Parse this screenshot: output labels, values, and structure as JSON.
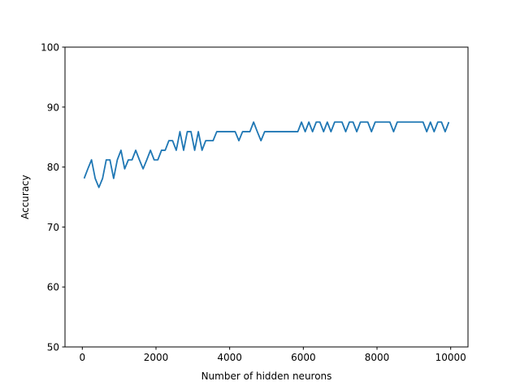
{
  "chart_data": {
    "type": "line",
    "title": "",
    "xlabel": "Number of hidden neurons",
    "ylabel": "Accuracy",
    "xlim": [
      -470,
      10470
    ],
    "ylim": [
      50,
      100
    ],
    "xticks": [
      0,
      2000,
      4000,
      6000,
      8000,
      10000
    ],
    "yticks": [
      50,
      60,
      70,
      80,
      90,
      100
    ],
    "xtick_labels": [
      "0",
      "2000",
      "4000",
      "6000",
      "8000",
      "10000"
    ],
    "ytick_labels": [
      "50",
      "60",
      "70",
      "80",
      "90",
      "100"
    ],
    "grid": false,
    "legend": "none",
    "series": [
      {
        "color": "#1f77b4",
        "x": [
          50,
          150,
          250,
          350,
          450,
          550,
          650,
          750,
          850,
          950,
          1050,
          1150,
          1250,
          1350,
          1450,
          1550,
          1650,
          1750,
          1850,
          1950,
          2050,
          2150,
          2250,
          2350,
          2450,
          2550,
          2650,
          2750,
          2850,
          2950,
          3050,
          3150,
          3250,
          3350,
          3450,
          3550,
          3650,
          3750,
          3850,
          3950,
          4050,
          4150,
          4250,
          4350,
          4450,
          4550,
          4650,
          4750,
          4850,
          4950,
          5050,
          5150,
          5250,
          5350,
          5450,
          5550,
          5650,
          5750,
          5850,
          5950,
          6050,
          6150,
          6250,
          6350,
          6450,
          6550,
          6650,
          6750,
          6850,
          6950,
          7050,
          7150,
          7250,
          7350,
          7450,
          7550,
          7650,
          7750,
          7850,
          7950,
          8050,
          8150,
          8250,
          8350,
          8450,
          8550,
          8650,
          8750,
          8850,
          8950,
          9050,
          9150,
          9250,
          9350,
          9450,
          9550,
          9650,
          9750,
          9850,
          9950
        ],
        "y": [
          78.1,
          79.7,
          81.2,
          78.1,
          76.6,
          78.1,
          81.2,
          81.2,
          78.1,
          81.2,
          82.8,
          79.7,
          81.2,
          81.2,
          82.8,
          81.2,
          79.7,
          81.2,
          82.8,
          81.2,
          81.2,
          82.8,
          82.8,
          84.4,
          84.4,
          82.8,
          85.9,
          82.8,
          85.9,
          85.9,
          82.8,
          85.9,
          82.8,
          84.4,
          84.4,
          84.4,
          85.9,
          85.9,
          85.9,
          85.9,
          85.9,
          85.9,
          84.4,
          85.9,
          85.9,
          85.9,
          87.5,
          85.9,
          84.4,
          85.9,
          85.9,
          85.9,
          85.9,
          85.9,
          85.9,
          85.9,
          85.9,
          85.9,
          85.9,
          87.5,
          85.9,
          87.5,
          85.9,
          87.5,
          87.5,
          85.9,
          87.5,
          85.9,
          87.5,
          87.5,
          87.5,
          85.9,
          87.5,
          87.5,
          85.9,
          87.5,
          87.5,
          87.5,
          85.9,
          87.5,
          87.5,
          87.5,
          87.5,
          87.5,
          85.9,
          87.5,
          87.5,
          87.5,
          87.5,
          87.5,
          87.5,
          87.5,
          87.5,
          85.9,
          87.5,
          85.9,
          87.5,
          87.5,
          85.9,
          87.5
        ]
      }
    ]
  }
}
